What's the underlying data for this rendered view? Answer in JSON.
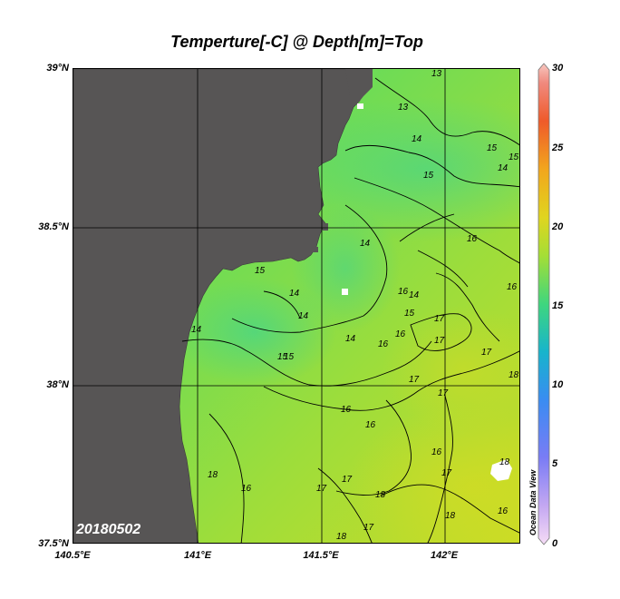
{
  "title": "Temperture[-C] @ Depth[m]=Top",
  "date_stamp": "20180502",
  "watermark": "Ocean Data View",
  "axes": {
    "y_ticks": [
      "39°N",
      "38.5°N",
      "38°N",
      "37.5°N"
    ],
    "x_ticks": [
      "140.5°E",
      "141°E",
      "141.5°E",
      "142°E"
    ]
  },
  "colorbar": {
    "ticks": [
      "30",
      "25",
      "20",
      "15",
      "10",
      "5",
      "0"
    ],
    "range": [
      0,
      30
    ]
  },
  "contour_labels": [
    "13",
    "13",
    "14",
    "15",
    "15",
    "15",
    "14",
    "16",
    "15",
    "16",
    "16",
    "14",
    "14",
    "14",
    "14",
    "15",
    "17",
    "17",
    "14",
    "16",
    "15",
    "17",
    "17",
    "17",
    "18",
    "14",
    "15",
    "16",
    "16",
    "16",
    "16",
    "16",
    "16",
    "17",
    "17",
    "17",
    "18",
    "18",
    "18",
    "17",
    "18",
    "18"
  ],
  "colors": {
    "land": "#575555",
    "grid": "#000000",
    "water_cool": "#3fd88b",
    "water_mid": "#7fe04a",
    "water_warm": "#c5dc2a"
  }
}
